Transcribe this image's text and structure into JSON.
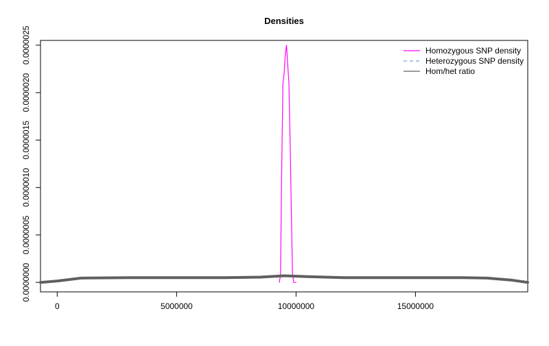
{
  "chart_data": {
    "type": "line",
    "title": "Densities",
    "xlabel": "",
    "ylabel": "",
    "xlim": [
      -700000,
      19700000
    ],
    "ylim": [
      -1e-07,
      2.55e-06
    ],
    "x_ticks": [
      0,
      5000000,
      10000000,
      15000000
    ],
    "x_tick_labels": [
      "0",
      "5000000",
      "10000000",
      "15000000"
    ],
    "y_ticks": [
      0,
      5e-07,
      1e-06,
      1.5e-06,
      2e-06,
      2.5e-06
    ],
    "y_tick_labels": [
      "0.0000000",
      "0.0000005",
      "0.0000010",
      "0.0000015",
      "0.0000020",
      "0.0000025"
    ],
    "grid": false,
    "legend_position": "top-right",
    "series": [
      {
        "name": "Homozygous SNP density",
        "color": "#ff00ff",
        "style": "solid",
        "x": [
          9300000,
          9350000,
          9400000,
          9450000,
          9500000,
          9550000,
          9600000,
          9650000,
          9700000,
          9750000,
          9800000,
          9850000,
          9900000,
          9950000,
          10000000
        ],
        "y": [
          0.0,
          8e-08,
          1.2e-06,
          2.1e-06,
          2.2e-06,
          2.4e-06,
          2.5e-06,
          2.3e-06,
          2.1e-06,
          1.5e-06,
          8e-07,
          1e-07,
          0.0,
          0.0,
          0.0
        ]
      },
      {
        "name": "Heterozygous SNP density",
        "color": "#6fa8dc",
        "style": "dashed",
        "x": [
          -700000,
          0,
          1000000,
          3000000,
          5000000,
          7000000,
          8500000,
          9500000,
          10500000,
          12000000,
          15000000,
          17000000,
          18000000,
          19000000,
          19700000
        ],
        "y": [
          0.0,
          1.5e-08,
          4.5e-08,
          5e-08,
          5e-08,
          5e-08,
          5.5e-08,
          7e-08,
          6e-08,
          5e-08,
          5e-08,
          5e-08,
          4.5e-08,
          2.5e-08,
          0.0
        ]
      },
      {
        "name": "Hom/het ratio",
        "color": "#5f5f5f",
        "style": "solid",
        "x": [
          -700000,
          0,
          1000000,
          3000000,
          5000000,
          7000000,
          8500000,
          9500000,
          10500000,
          12000000,
          15000000,
          17000000,
          18000000,
          19000000,
          19700000
        ],
        "y": [
          0.0,
          1.5e-08,
          4.5e-08,
          5e-08,
          5e-08,
          5e-08,
          5.5e-08,
          7e-08,
          6e-08,
          5e-08,
          5e-08,
          5e-08,
          4.5e-08,
          2.5e-08,
          0.0
        ]
      }
    ]
  }
}
